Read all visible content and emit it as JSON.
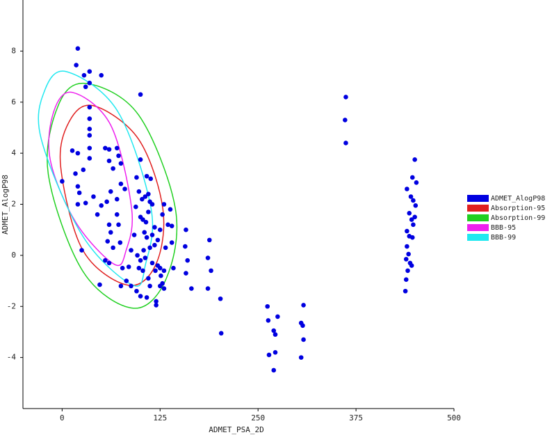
{
  "chart_data": {
    "type": "scatter",
    "xlabel": "ADMET_PSA_2D",
    "ylabel": "ADMET_AlogP98",
    "xlim": [
      -50,
      500
    ],
    "ylim": [
      -6,
      10
    ],
    "xticks": [
      0,
      125,
      250,
      375,
      500
    ],
    "yticks": [
      -4,
      -2,
      0,
      2,
      4,
      6,
      8
    ],
    "grid": false,
    "legend": "right",
    "series": [
      {
        "name": "ADMET_AlogP98",
        "color": "#0000e0",
        "kind": "points",
        "x": [
          20,
          18,
          28,
          35,
          50,
          30,
          35,
          100,
          35,
          35,
          35,
          35,
          35,
          35,
          13,
          20,
          17,
          20,
          22,
          27,
          0,
          20,
          30,
          25,
          40,
          45,
          50,
          55,
          60,
          60,
          65,
          62,
          57,
          60,
          62,
          65,
          58,
          55,
          60,
          70,
          72,
          75,
          75,
          70,
          70,
          72,
          74,
          77,
          80,
          85,
          88,
          75,
          48,
          100,
          95,
          98,
          102,
          106,
          108,
          112,
          115,
          100,
          103,
          107,
          110,
          105,
          108,
          112,
          118,
          104,
          106,
          100,
          98,
          103,
          110,
          112,
          115,
          122,
          125,
          130,
          132,
          135,
          138,
          140,
          142,
          125,
          120,
          120,
          128,
          130,
          95,
          100,
          108,
          115,
          122,
          118,
          125,
          128,
          130,
          82,
          92,
          88,
          94,
          140,
          113,
          110,
          96,
          119,
          126,
          158,
          157,
          160,
          158,
          165,
          188,
          186,
          190,
          186,
          202,
          203,
          262,
          263,
          264,
          270,
          272,
          272,
          275,
          270,
          305,
          307,
          308,
          308,
          305,
          362,
          361,
          362,
          450,
          447,
          452,
          440,
          445,
          448,
          451,
          443,
          446,
          450,
          448,
          440,
          443,
          447,
          440,
          442,
          439,
          444,
          441,
          439,
          438,
          446
        ],
        "values": [
          8.1,
          7.45,
          7.05,
          7.2,
          7.05,
          6.6,
          6.75,
          6.3,
          5.8,
          5.35,
          4.95,
          4.7,
          4.2,
          3.8,
          4.1,
          4.0,
          3.2,
          2.7,
          2.45,
          3.35,
          2.9,
          2.0,
          2.05,
          0.2,
          2.3,
          1.6,
          1.95,
          4.2,
          4.15,
          3.7,
          3.4,
          2.5,
          2.1,
          1.2,
          0.9,
          0.3,
          0.55,
          -0.2,
          -0.3,
          4.2,
          3.9,
          3.6,
          2.8,
          2.2,
          1.6,
          1.2,
          0.5,
          -0.5,
          2.6,
          -0.45,
          -1.2,
          -1.2,
          -1.15,
          3.75,
          3.05,
          2.5,
          2.2,
          2.3,
          3.1,
          2.1,
          2.0,
          1.5,
          1.4,
          1.3,
          1.7,
          0.9,
          0.7,
          0.3,
          0.4,
          0.2,
          -0.1,
          -0.2,
          -0.5,
          -0.6,
          -0.9,
          -1.2,
          -0.3,
          -0.4,
          -0.5,
          -0.6,
          0.3,
          1.2,
          1.8,
          0.5,
          -0.5,
          -1.2,
          -1.8,
          -1.95,
          -1.1,
          -1.3,
          -1.4,
          -1.6,
          -1.65,
          0.8,
          0.6,
          1.1,
          1.0,
          1.6,
          2.0,
          -1.0,
          0.8,
          0.2,
          1.9,
          1.15,
          3.0,
          2.4,
          0.0,
          -0.6,
          -0.8,
          1.0,
          0.35,
          -0.2,
          -0.7,
          -1.3,
          0.6,
          -0.1,
          -0.6,
          -1.3,
          -1.7,
          -3.05,
          -2.0,
          -2.55,
          -3.9,
          -2.95,
          -3.1,
          -3.8,
          -2.4,
          -4.5,
          -2.65,
          -2.75,
          -1.95,
          -3.3,
          -4.0,
          6.2,
          5.3,
          4.4,
          3.75,
          3.05,
          2.85,
          2.6,
          2.3,
          2.15,
          1.95,
          1.65,
          1.4,
          1.5,
          1.2,
          0.95,
          0.75,
          0.7,
          0.35,
          0.05,
          -0.15,
          -0.3,
          -0.6,
          -0.95,
          -1.4,
          -0.4
        ]
      },
      {
        "name": "Absorption-95",
        "color": "#e02020",
        "kind": "closed-curve",
        "x": [
          39.9,
          97.5,
          128.5,
          119.7,
          84.2,
          26.6,
          -1.8,
          8.9
        ],
        "values": [
          5.86,
          4.55,
          1.83,
          -0.35,
          -1.17,
          0.19,
          3.46,
          5.23
        ]
      },
      {
        "name": "Absorption-99",
        "color": "#20d020",
        "kind": "closed-curve",
        "x": [
          31.0,
          97.5,
          144.5,
          133,
          91.3,
          26.6,
          -17.7,
          -4.4
        ],
        "values": [
          6.73,
          5.5,
          1.83,
          -0.9,
          -2.07,
          -0.63,
          3.19,
          5.91
        ]
      },
      {
        "name": "BBB-95",
        "color": "#ee20ee",
        "kind": "closed-curve",
        "x": [
          13.3,
          62,
          88.7,
          81.6,
          66.5,
          17.7,
          -15.1,
          -10.6
        ],
        "values": [
          6.38,
          5.1,
          1.83,
          0.19,
          -0.35,
          1.28,
          3.73,
          5.64
        ]
      },
      {
        "name": "BBB-99",
        "color": "#20e8f0",
        "kind": "closed-curve",
        "x": [
          6.2,
          70.9,
          113.5,
          106.4,
          90.4,
          26.6,
          -26.6,
          -22.2
        ],
        "values": [
          7.19,
          5.64,
          1.83,
          -0.35,
          -1.17,
          0.74,
          4.55,
          6.46
        ]
      }
    ]
  }
}
